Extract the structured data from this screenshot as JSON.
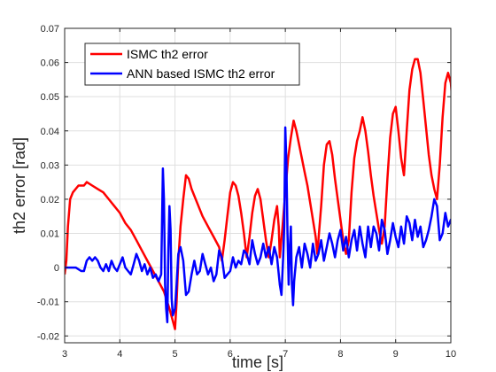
{
  "chart_data": {
    "type": "line",
    "title": "",
    "xlabel": "time [s]",
    "ylabel": "th2 error [rad]",
    "xlim": [
      3,
      10
    ],
    "ylim": [
      -0.022,
      0.07
    ],
    "xticks": [
      3,
      4,
      5,
      6,
      7,
      8,
      9,
      10
    ],
    "yticks": [
      -0.02,
      -0.01,
      0,
      0.01,
      0.02,
      0.03,
      0.04,
      0.05,
      0.06,
      0.07
    ],
    "grid": true,
    "legend_position": "top-left",
    "series": [
      {
        "name": "ISMC th2 error",
        "color": "#ff0000",
        "points": [
          [
            3.0,
            -0.002
          ],
          [
            3.03,
            0.002
          ],
          [
            3.06,
            0.012
          ],
          [
            3.1,
            0.02
          ],
          [
            3.15,
            0.022
          ],
          [
            3.25,
            0.024
          ],
          [
            3.35,
            0.024
          ],
          [
            3.4,
            0.025
          ],
          [
            3.5,
            0.024
          ],
          [
            3.6,
            0.023
          ],
          [
            3.7,
            0.022
          ],
          [
            3.8,
            0.02
          ],
          [
            3.9,
            0.018
          ],
          [
            4.0,
            0.016
          ],
          [
            4.1,
            0.013
          ],
          [
            4.2,
            0.011
          ],
          [
            4.3,
            0.008
          ],
          [
            4.4,
            0.005
          ],
          [
            4.5,
            0.002
          ],
          [
            4.6,
            -0.001
          ],
          [
            4.7,
            -0.004
          ],
          [
            4.8,
            -0.007
          ],
          [
            4.9,
            -0.012
          ],
          [
            4.95,
            -0.015
          ],
          [
            5.0,
            -0.018
          ],
          [
            5.03,
            -0.01
          ],
          [
            5.06,
            0.002
          ],
          [
            5.1,
            0.012
          ],
          [
            5.15,
            0.02
          ],
          [
            5.2,
            0.027
          ],
          [
            5.25,
            0.026
          ],
          [
            5.3,
            0.023
          ],
          [
            5.4,
            0.019
          ],
          [
            5.5,
            0.015
          ],
          [
            5.6,
            0.012
          ],
          [
            5.7,
            0.009
          ],
          [
            5.8,
            0.006
          ],
          [
            5.85,
            0.002
          ],
          [
            5.9,
            0.008
          ],
          [
            5.95,
            0.015
          ],
          [
            6.0,
            0.022
          ],
          [
            6.05,
            0.025
          ],
          [
            6.1,
            0.024
          ],
          [
            6.15,
            0.021
          ],
          [
            6.2,
            0.016
          ],
          [
            6.25,
            0.01
          ],
          [
            6.3,
            0.003
          ],
          [
            6.35,
            0.009
          ],
          [
            6.4,
            0.016
          ],
          [
            6.45,
            0.021
          ],
          [
            6.5,
            0.023
          ],
          [
            6.55,
            0.02
          ],
          [
            6.6,
            0.014
          ],
          [
            6.65,
            0.008
          ],
          [
            6.7,
            0.003
          ],
          [
            6.75,
            0.008
          ],
          [
            6.8,
            0.014
          ],
          [
            6.85,
            0.018
          ],
          [
            6.88,
            0.012
          ],
          [
            6.9,
            0.003
          ],
          [
            6.95,
            0.012
          ],
          [
            7.0,
            0.022
          ],
          [
            7.05,
            0.032
          ],
          [
            7.1,
            0.038
          ],
          [
            7.15,
            0.043
          ],
          [
            7.2,
            0.04
          ],
          [
            7.25,
            0.036
          ],
          [
            7.3,
            0.032
          ],
          [
            7.35,
            0.028
          ],
          [
            7.4,
            0.024
          ],
          [
            7.45,
            0.019
          ],
          [
            7.5,
            0.014
          ],
          [
            7.55,
            0.009
          ],
          [
            7.58,
            0.004
          ],
          [
            7.6,
            0.008
          ],
          [
            7.65,
            0.018
          ],
          [
            7.7,
            0.03
          ],
          [
            7.75,
            0.036
          ],
          [
            7.8,
            0.037
          ],
          [
            7.85,
            0.033
          ],
          [
            7.9,
            0.026
          ],
          [
            7.95,
            0.02
          ],
          [
            8.0,
            0.014
          ],
          [
            8.05,
            0.008
          ],
          [
            8.1,
            0.004
          ],
          [
            8.15,
            0.008
          ],
          [
            8.2,
            0.022
          ],
          [
            8.25,
            0.032
          ],
          [
            8.3,
            0.037
          ],
          [
            8.35,
            0.04
          ],
          [
            8.4,
            0.044
          ],
          [
            8.45,
            0.04
          ],
          [
            8.5,
            0.034
          ],
          [
            8.55,
            0.027
          ],
          [
            8.6,
            0.021
          ],
          [
            8.65,
            0.016
          ],
          [
            8.7,
            0.011
          ],
          [
            8.75,
            0.007
          ],
          [
            8.8,
            0.012
          ],
          [
            8.85,
            0.026
          ],
          [
            8.9,
            0.038
          ],
          [
            8.95,
            0.045
          ],
          [
            9.0,
            0.047
          ],
          [
            9.05,
            0.04
          ],
          [
            9.1,
            0.032
          ],
          [
            9.15,
            0.027
          ],
          [
            9.2,
            0.04
          ],
          [
            9.25,
            0.052
          ],
          [
            9.3,
            0.058
          ],
          [
            9.35,
            0.061
          ],
          [
            9.4,
            0.061
          ],
          [
            9.45,
            0.057
          ],
          [
            9.5,
            0.049
          ],
          [
            9.55,
            0.041
          ],
          [
            9.6,
            0.033
          ],
          [
            9.65,
            0.027
          ],
          [
            9.7,
            0.023
          ],
          [
            9.75,
            0.02
          ],
          [
            9.8,
            0.03
          ],
          [
            9.85,
            0.044
          ],
          [
            9.9,
            0.054
          ],
          [
            9.95,
            0.057
          ],
          [
            10.0,
            0.054
          ],
          [
            10.03,
            0.048
          ],
          [
            10.06,
            0.041
          ]
        ]
      },
      {
        "name": "ANN based ISMC th2 error",
        "color": "#0000ff",
        "points": [
          [
            3.0,
            0.0
          ],
          [
            3.1,
            0.0
          ],
          [
            3.2,
            0.0
          ],
          [
            3.3,
            -0.001
          ],
          [
            3.35,
            -0.001
          ],
          [
            3.4,
            0.002
          ],
          [
            3.45,
            0.003
          ],
          [
            3.5,
            0.002
          ],
          [
            3.55,
            0.003
          ],
          [
            3.6,
            0.002
          ],
          [
            3.65,
            0.0
          ],
          [
            3.7,
            -0.001
          ],
          [
            3.75,
            0.001
          ],
          [
            3.8,
            -0.001
          ],
          [
            3.85,
            0.002
          ],
          [
            3.9,
            0.0
          ],
          [
            3.95,
            -0.001
          ],
          [
            4.0,
            0.001
          ],
          [
            4.05,
            0.003
          ],
          [
            4.1,
            0.0
          ],
          [
            4.15,
            -0.001
          ],
          [
            4.2,
            -0.002
          ],
          [
            4.25,
            0.001
          ],
          [
            4.3,
            0.004
          ],
          [
            4.35,
            0.002
          ],
          [
            4.4,
            -0.001
          ],
          [
            4.45,
            0.001
          ],
          [
            4.5,
            -0.002
          ],
          [
            4.55,
            0.0
          ],
          [
            4.6,
            -0.003
          ],
          [
            4.65,
            -0.002
          ],
          [
            4.7,
            -0.004
          ],
          [
            4.75,
            -0.002
          ],
          [
            4.78,
            0.029
          ],
          [
            4.8,
            0.02
          ],
          [
            4.82,
            -0.005
          ],
          [
            4.84,
            -0.012
          ],
          [
            4.86,
            -0.016
          ],
          [
            4.88,
            0.005
          ],
          [
            4.9,
            0.018
          ],
          [
            4.92,
            0.011
          ],
          [
            4.94,
            -0.009
          ],
          [
            4.96,
            -0.014
          ],
          [
            5.0,
            -0.012
          ],
          [
            5.03,
            -0.005
          ],
          [
            5.06,
            0.004
          ],
          [
            5.1,
            0.006
          ],
          [
            5.15,
            0.002
          ],
          [
            5.2,
            -0.008
          ],
          [
            5.25,
            -0.007
          ],
          [
            5.3,
            -0.002
          ],
          [
            5.35,
            0.002
          ],
          [
            5.4,
            -0.002
          ],
          [
            5.45,
            -0.001
          ],
          [
            5.5,
            0.004
          ],
          [
            5.55,
            0.001
          ],
          [
            5.6,
            -0.002
          ],
          [
            5.65,
            0.0
          ],
          [
            5.7,
            -0.004
          ],
          [
            5.75,
            -0.002
          ],
          [
            5.8,
            0.005
          ],
          [
            5.85,
            0.003
          ],
          [
            5.9,
            -0.003
          ],
          [
            5.95,
            -0.002
          ],
          [
            6.0,
            -0.001
          ],
          [
            6.05,
            0.003
          ],
          [
            6.1,
            0.0
          ],
          [
            6.15,
            0.002
          ],
          [
            6.2,
            0.001
          ],
          [
            6.25,
            0.005
          ],
          [
            6.3,
            0.004
          ],
          [
            6.35,
            0.001
          ],
          [
            6.4,
            0.008
          ],
          [
            6.45,
            0.004
          ],
          [
            6.5,
            0.001
          ],
          [
            6.55,
            0.003
          ],
          [
            6.6,
            0.007
          ],
          [
            6.65,
            0.003
          ],
          [
            6.7,
            0.006
          ],
          [
            6.75,
            0.001
          ],
          [
            6.8,
            0.006
          ],
          [
            6.85,
            0.003
          ],
          [
            6.9,
            -0.005
          ],
          [
            6.93,
            -0.008
          ],
          [
            6.96,
            0.003
          ],
          [
            6.98,
            0.012
          ],
          [
            7.0,
            0.041
          ],
          [
            7.02,
            0.03
          ],
          [
            7.04,
            0.01
          ],
          [
            7.06,
            -0.005
          ],
          [
            7.08,
            0.005
          ],
          [
            7.1,
            0.012
          ],
          [
            7.12,
            -0.005
          ],
          [
            7.14,
            -0.011
          ],
          [
            7.16,
            -0.004
          ],
          [
            7.2,
            0.003
          ],
          [
            7.25,
            0.006
          ],
          [
            7.3,
            0.0
          ],
          [
            7.35,
            0.007
          ],
          [
            7.4,
            0.004
          ],
          [
            7.45,
            0.0
          ],
          [
            7.5,
            0.007
          ],
          [
            7.55,
            0.002
          ],
          [
            7.6,
            0.004
          ],
          [
            7.65,
            0.008
          ],
          [
            7.7,
            0.002
          ],
          [
            7.75,
            0.006
          ],
          [
            7.8,
            0.01
          ],
          [
            7.85,
            0.007
          ],
          [
            7.9,
            0.003
          ],
          [
            7.95,
            0.008
          ],
          [
            8.0,
            0.011
          ],
          [
            8.05,
            0.005
          ],
          [
            8.1,
            0.009
          ],
          [
            8.15,
            0.003
          ],
          [
            8.2,
            0.008
          ],
          [
            8.25,
            0.011
          ],
          [
            8.3,
            0.005
          ],
          [
            8.35,
            0.012
          ],
          [
            8.4,
            0.007
          ],
          [
            8.45,
            0.003
          ],
          [
            8.5,
            0.012
          ],
          [
            8.55,
            0.006
          ],
          [
            8.6,
            0.012
          ],
          [
            8.65,
            0.01
          ],
          [
            8.7,
            0.005
          ],
          [
            8.75,
            0.014
          ],
          [
            8.8,
            0.011
          ],
          [
            8.85,
            0.004
          ],
          [
            8.9,
            0.008
          ],
          [
            8.95,
            0.013
          ],
          [
            9.0,
            0.009
          ],
          [
            9.05,
            0.006
          ],
          [
            9.1,
            0.012
          ],
          [
            9.15,
            0.007
          ],
          [
            9.2,
            0.015
          ],
          [
            9.25,
            0.013
          ],
          [
            9.3,
            0.008
          ],
          [
            9.35,
            0.014
          ],
          [
            9.4,
            0.009
          ],
          [
            9.45,
            0.012
          ],
          [
            9.5,
            0.006
          ],
          [
            9.55,
            0.008
          ],
          [
            9.6,
            0.011
          ],
          [
            9.65,
            0.015
          ],
          [
            9.7,
            0.02
          ],
          [
            9.75,
            0.018
          ],
          [
            9.8,
            0.008
          ],
          [
            9.85,
            0.01
          ],
          [
            9.9,
            0.016
          ],
          [
            9.95,
            0.012
          ],
          [
            10.0,
            0.014
          ],
          [
            10.03,
            0.012
          ],
          [
            10.06,
            0.018
          ]
        ]
      }
    ]
  }
}
